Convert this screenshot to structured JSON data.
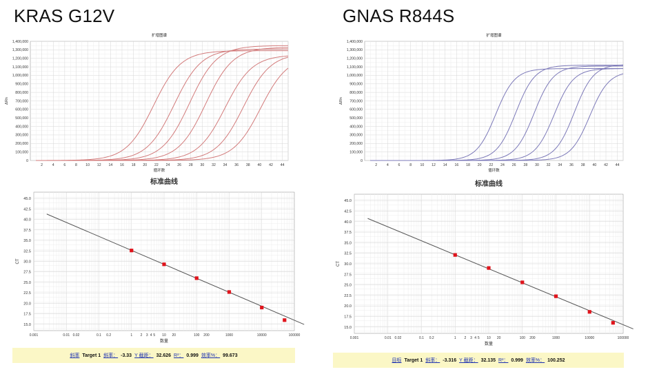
{
  "panels": [
    {
      "id": "left",
      "title": "KRAS G12V",
      "curve_color": "#d27a7a",
      "footer": {
        "prefix": "斜率",
        "target": "Target 1",
        "slope_label": "斜率：",
        "slope": "-3.33",
        "yint_label": "Y 截距：",
        "yint": "32.626",
        "r2_label": "R²：",
        "r2": "0.999",
        "eff_label": "效率%：",
        "eff": "99.673"
      }
    },
    {
      "id": "right",
      "title": "GNAS R844S",
      "curve_color": "#7b78b8",
      "footer": {
        "prefix": "目标",
        "target": "Target 1",
        "slope_label": "斜率：",
        "slope": "-3.316",
        "yint_label": "Y 截距：",
        "yint": "32.135",
        "r2_label": "R²：",
        "r2": "0.999",
        "eff_label": "效率%：",
        "eff": "100.252"
      }
    }
  ],
  "chart_data": [
    {
      "type": "line",
      "panel": "KRAS G12V amplification",
      "title": "扩增图谱",
      "xlabel": "循环数",
      "ylabel": "ΔRn",
      "xlim": [
        0,
        45
      ],
      "ylim": [
        0,
        1400000
      ],
      "x_ticks": [
        2,
        4,
        6,
        8,
        10,
        12,
        14,
        16,
        18,
        20,
        22,
        24,
        26,
        28,
        30,
        32,
        34,
        36,
        38,
        40,
        42,
        44
      ],
      "y_ticks": [
        0,
        100000,
        200000,
        300000,
        400000,
        500000,
        600000,
        700000,
        800000,
        900000,
        1000000,
        1100000,
        1200000,
        1300000,
        1400000
      ],
      "y_tick_labels": [
        "0",
        "100,000",
        "200,000",
        "300,000",
        "400,000",
        "500,000",
        "600,000",
        "700,000",
        "800,000",
        "900,000",
        "1,000,000",
        "1,100,000",
        "1,200,000",
        "1,300,000",
        "1,400,000"
      ],
      "grid": true,
      "series": [
        {
          "ct": 21.5,
          "plateau": 1290000,
          "k": 0.42
        },
        {
          "ct": 25.1,
          "plateau": 1310000,
          "k": 0.42
        },
        {
          "ct": 27.8,
          "plateau": 1350000,
          "k": 0.42
        },
        {
          "ct": 30.6,
          "plateau": 1330000,
          "k": 0.42
        },
        {
          "ct": 34.0,
          "plateau": 1240000,
          "k": 0.42
        },
        {
          "ct": 37.2,
          "plateau": 1260000,
          "k": 0.42
        },
        {
          "ct": 40.2,
          "plateau": 1230000,
          "k": 0.42
        }
      ]
    },
    {
      "type": "scatter",
      "panel": "KRAS G12V standard curve",
      "title": "标准曲线",
      "xlabel": "数量",
      "ylabel": "CT",
      "xscale": "log",
      "xlim": [
        0.001,
        100000
      ],
      "ylim": [
        13.5,
        46.5
      ],
      "x_tick_labels": [
        [
          0.001,
          "0.001"
        ],
        [
          0.01,
          "0.01"
        ],
        [
          0.02,
          "0.02"
        ],
        [
          0.1,
          "0.1"
        ],
        [
          0.2,
          "0.2"
        ],
        [
          1,
          "1"
        ],
        [
          2,
          "2"
        ],
        [
          3,
          "3"
        ],
        [
          4,
          "4"
        ],
        [
          5,
          "5"
        ],
        [
          10,
          "10"
        ],
        [
          20,
          "20"
        ],
        [
          100,
          "100"
        ],
        [
          200,
          "200"
        ],
        [
          1000,
          "1000"
        ],
        [
          10000,
          "10000"
        ],
        [
          100000,
          "100000"
        ]
      ],
      "y_ticks": [
        15,
        17.5,
        20,
        22.5,
        25,
        27.5,
        30,
        32.5,
        35,
        37.5,
        40,
        42.5,
        45
      ],
      "y_tick_labels": [
        "15.0",
        "17.5",
        "20.0",
        "22.5",
        "25.0",
        "27.5",
        "30.0",
        "32.5",
        "35.0",
        "37.5",
        "40.0",
        "42.5",
        "45.0"
      ],
      "grid": true,
      "points": [
        [
          1,
          32.6
        ],
        [
          10,
          29.3
        ],
        [
          100,
          26.0
        ],
        [
          1000,
          22.7
        ],
        [
          10000,
          19.0
        ],
        [
          50000,
          16.0
        ]
      ],
      "fit": {
        "slope": -3.33,
        "intercept": 32.626,
        "x_from": 0.0025,
        "x_to": 200000
      }
    },
    {
      "type": "line",
      "panel": "GNAS R844S amplification",
      "title": "扩增图谱",
      "xlabel": "循环数",
      "ylabel": "ΔRn",
      "xlim": [
        0,
        45
      ],
      "ylim": [
        0,
        1400000
      ],
      "x_ticks": [
        2,
        4,
        6,
        8,
        10,
        12,
        14,
        16,
        18,
        20,
        22,
        24,
        26,
        28,
        30,
        32,
        34,
        36,
        38,
        40,
        42,
        44
      ],
      "y_ticks": [
        0,
        100000,
        200000,
        300000,
        400000,
        500000,
        600000,
        700000,
        800000,
        900000,
        1000000,
        1100000,
        1200000,
        1300000,
        1400000
      ],
      "y_tick_labels": [
        "0",
        "100,000",
        "200,000",
        "300,000",
        "400,000",
        "500,000",
        "600,000",
        "700,000",
        "800,000",
        "900,000",
        "1,000,000",
        "1,100,000",
        "1,200,000",
        "1,300,000",
        "1,400,000"
      ],
      "grid": true,
      "series": [
        {
          "ct": 22.8,
          "plateau": 1080000,
          "k": 0.6
        },
        {
          "ct": 26.3,
          "plateau": 1120000,
          "k": 0.6
        },
        {
          "ct": 29.5,
          "plateau": 1110000,
          "k": 0.6
        },
        {
          "ct": 33.0,
          "plateau": 1080000,
          "k": 0.6
        },
        {
          "ct": 36.5,
          "plateau": 1130000,
          "k": 0.6
        },
        {
          "ct": 39.2,
          "plateau": 1050000,
          "k": 0.6
        }
      ]
    },
    {
      "type": "scatter",
      "panel": "GNAS R844S standard curve",
      "title": "标准曲线",
      "xlabel": "数量",
      "ylabel": "CT",
      "xscale": "log",
      "xlim": [
        0.001,
        100000
      ],
      "ylim": [
        13.5,
        46.5
      ],
      "x_tick_labels": [
        [
          0.001,
          "0.001"
        ],
        [
          0.01,
          "0.01"
        ],
        [
          0.02,
          "0.02"
        ],
        [
          0.1,
          "0.1"
        ],
        [
          0.2,
          "0.2"
        ],
        [
          1,
          "1"
        ],
        [
          2,
          "2"
        ],
        [
          3,
          "3"
        ],
        [
          4,
          "4"
        ],
        [
          5,
          "5"
        ],
        [
          10,
          "10"
        ],
        [
          20,
          "20"
        ],
        [
          100,
          "100"
        ],
        [
          200,
          "200"
        ],
        [
          1000,
          "1000"
        ],
        [
          10000,
          "10000"
        ],
        [
          100000,
          "100000"
        ]
      ],
      "y_ticks": [
        15,
        17.5,
        20,
        22.5,
        25,
        27.5,
        30,
        32.5,
        35,
        37.5,
        40,
        42.5,
        45
      ],
      "y_tick_labels": [
        "15.0",
        "17.5",
        "20.0",
        "22.5",
        "25.0",
        "27.5",
        "30.0",
        "32.5",
        "35.0",
        "37.5",
        "40.0",
        "42.5",
        "45.0"
      ],
      "grid": true,
      "points": [
        [
          1,
          32.1
        ],
        [
          10,
          29.0
        ],
        [
          100,
          25.6
        ],
        [
          1000,
          22.3
        ],
        [
          10000,
          18.6
        ],
        [
          50000,
          16.0
        ]
      ],
      "fit": {
        "slope": -3.316,
        "intercept": 32.135,
        "x_from": 0.0025,
        "x_to": 200000
      }
    }
  ]
}
